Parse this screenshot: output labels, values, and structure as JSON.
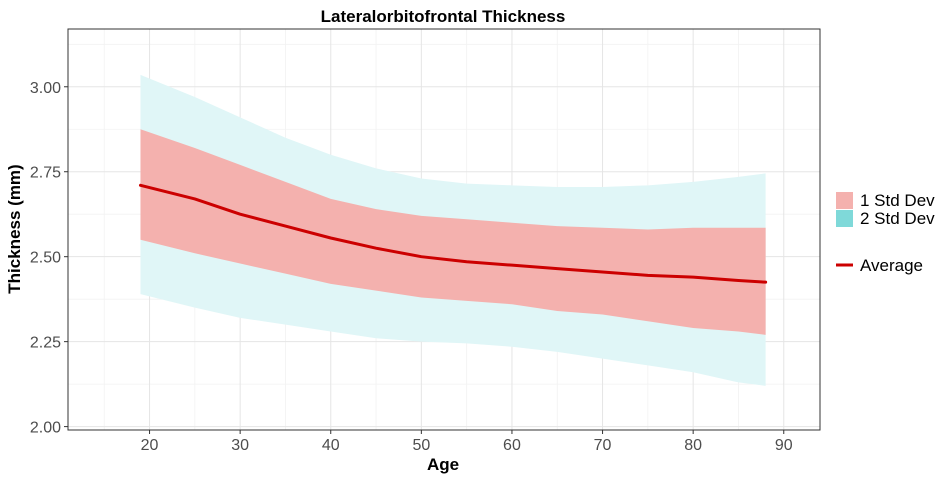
{
  "chart_data": {
    "type": "area",
    "title": "Lateralorbitofrontal Thickness",
    "xlabel": "Age",
    "ylabel": "Thickness (mm)",
    "xlim": [
      11,
      94
    ],
    "ylim": [
      1.99,
      3.17
    ],
    "xticks": [
      20,
      30,
      40,
      50,
      60,
      70,
      80,
      90
    ],
    "yticks": [
      2.0,
      2.25,
      2.5,
      2.75,
      3.0
    ],
    "ytick_labels": [
      "2.00",
      "2.25",
      "2.50",
      "2.75",
      "3.00"
    ],
    "grid": true,
    "legend_position": "right",
    "x": [
      19,
      25,
      30,
      35,
      40,
      45,
      50,
      55,
      60,
      65,
      70,
      75,
      80,
      85,
      88
    ],
    "series": [
      {
        "name": "1 Std Dev",
        "kind": "band",
        "color": "#f4b1ae",
        "lower": [
          2.55,
          2.51,
          2.48,
          2.45,
          2.42,
          2.4,
          2.38,
          2.37,
          2.36,
          2.34,
          2.33,
          2.31,
          2.29,
          2.28,
          2.27
        ],
        "upper": [
          2.875,
          2.82,
          2.77,
          2.72,
          2.67,
          2.64,
          2.62,
          2.61,
          2.6,
          2.59,
          2.585,
          2.58,
          2.585,
          2.585,
          2.585
        ]
      },
      {
        "name": "2 Std Dev",
        "kind": "band",
        "color": "#e0f6f7",
        "legend_color": "#7fd9d9",
        "lower": [
          2.39,
          2.35,
          2.32,
          2.3,
          2.28,
          2.26,
          2.25,
          2.245,
          2.235,
          2.22,
          2.2,
          2.18,
          2.16,
          2.13,
          2.12
        ],
        "upper": [
          3.035,
          2.97,
          2.91,
          2.85,
          2.8,
          2.76,
          2.73,
          2.715,
          2.71,
          2.705,
          2.705,
          2.71,
          2.72,
          2.735,
          2.745
        ]
      },
      {
        "name": "Average",
        "kind": "line",
        "color": "#cc0000",
        "values": [
          2.71,
          2.67,
          2.625,
          2.59,
          2.555,
          2.525,
          2.5,
          2.485,
          2.475,
          2.465,
          2.455,
          2.445,
          2.44,
          2.43,
          2.425
        ]
      }
    ]
  }
}
